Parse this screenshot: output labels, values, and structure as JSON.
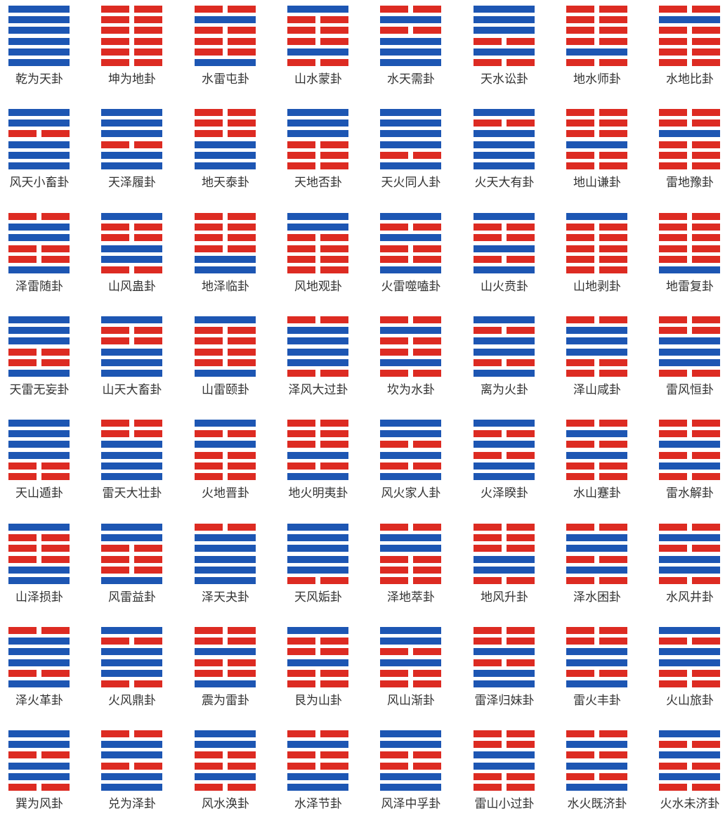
{
  "colors": {
    "yang": "#1d56b3",
    "yin": "#dd2b22"
  },
  "hexagrams": [
    {
      "name": "乾为天卦",
      "lines": [
        1,
        1,
        1,
        1,
        1,
        1
      ]
    },
    {
      "name": "坤为地卦",
      "lines": [
        0,
        0,
        0,
        0,
        0,
        0
      ]
    },
    {
      "name": "水雷屯卦",
      "lines": [
        0,
        1,
        0,
        0,
        0,
        1
      ]
    },
    {
      "name": "山水蒙卦",
      "lines": [
        1,
        0,
        0,
        0,
        1,
        0
      ]
    },
    {
      "name": "水天需卦",
      "lines": [
        0,
        1,
        0,
        1,
        1,
        1
      ]
    },
    {
      "name": "天水讼卦",
      "lines": [
        1,
        1,
        1,
        0,
        1,
        0
      ]
    },
    {
      "name": "地水师卦",
      "lines": [
        0,
        0,
        0,
        0,
        1,
        0
      ]
    },
    {
      "name": "水地比卦",
      "lines": [
        0,
        1,
        0,
        0,
        0,
        0
      ]
    },
    {
      "name": "风天小畜卦",
      "lines": [
        1,
        1,
        0,
        1,
        1,
        1
      ]
    },
    {
      "name": "天泽履卦",
      "lines": [
        1,
        1,
        1,
        0,
        1,
        1
      ]
    },
    {
      "name": "地天泰卦",
      "lines": [
        0,
        0,
        0,
        1,
        1,
        1
      ]
    },
    {
      "name": "天地否卦",
      "lines": [
        1,
        1,
        1,
        0,
        0,
        0
      ]
    },
    {
      "name": "天火同人卦",
      "lines": [
        1,
        1,
        1,
        1,
        0,
        1
      ]
    },
    {
      "name": "火天大有卦",
      "lines": [
        1,
        0,
        1,
        1,
        1,
        1
      ]
    },
    {
      "name": "地山谦卦",
      "lines": [
        0,
        0,
        0,
        1,
        0,
        0
      ]
    },
    {
      "name": "雷地豫卦",
      "lines": [
        0,
        0,
        1,
        0,
        0,
        0
      ]
    },
    {
      "name": "泽雷随卦",
      "lines": [
        0,
        1,
        1,
        0,
        0,
        1
      ]
    },
    {
      "name": "山风蛊卦",
      "lines": [
        1,
        0,
        0,
        1,
        1,
        0
      ]
    },
    {
      "name": "地泽临卦",
      "lines": [
        0,
        0,
        0,
        0,
        1,
        1
      ]
    },
    {
      "name": "风地观卦",
      "lines": [
        1,
        1,
        0,
        0,
        0,
        0
      ]
    },
    {
      "name": "火雷噬嗑卦",
      "lines": [
        1,
        0,
        1,
        0,
        0,
        1
      ]
    },
    {
      "name": "山火贲卦",
      "lines": [
        1,
        0,
        0,
        1,
        0,
        1
      ]
    },
    {
      "name": "山地剥卦",
      "lines": [
        1,
        0,
        0,
        0,
        0,
        0
      ]
    },
    {
      "name": "地雷复卦",
      "lines": [
        0,
        0,
        0,
        0,
        0,
        1
      ]
    },
    {
      "name": "天雷无妄卦",
      "lines": [
        1,
        1,
        1,
        0,
        0,
        1
      ]
    },
    {
      "name": "山天大畜卦",
      "lines": [
        1,
        0,
        0,
        1,
        1,
        1
      ]
    },
    {
      "name": "山雷颐卦",
      "lines": [
        1,
        0,
        0,
        0,
        0,
        1
      ]
    },
    {
      "name": "泽风大过卦",
      "lines": [
        0,
        1,
        1,
        1,
        1,
        0
      ]
    },
    {
      "name": "坎为水卦",
      "lines": [
        0,
        1,
        0,
        0,
        1,
        0
      ]
    },
    {
      "name": "离为火卦",
      "lines": [
        1,
        0,
        1,
        1,
        0,
        1
      ]
    },
    {
      "name": "泽山咸卦",
      "lines": [
        0,
        1,
        1,
        1,
        0,
        0
      ]
    },
    {
      "name": "雷风恒卦",
      "lines": [
        0,
        0,
        1,
        1,
        1,
        0
      ]
    },
    {
      "name": "天山遁卦",
      "lines": [
        1,
        1,
        1,
        1,
        0,
        0
      ]
    },
    {
      "name": "雷天大壮卦",
      "lines": [
        0,
        0,
        1,
        1,
        1,
        1
      ]
    },
    {
      "name": "火地晋卦",
      "lines": [
        1,
        0,
        1,
        0,
        0,
        0
      ]
    },
    {
      "name": "地火明夷卦",
      "lines": [
        0,
        0,
        0,
        1,
        0,
        1
      ]
    },
    {
      "name": "风火家人卦",
      "lines": [
        1,
        1,
        0,
        1,
        0,
        1
      ]
    },
    {
      "name": "火泽睽卦",
      "lines": [
        1,
        0,
        1,
        0,
        1,
        1
      ]
    },
    {
      "name": "水山蹇卦",
      "lines": [
        0,
        1,
        0,
        1,
        0,
        0
      ]
    },
    {
      "name": "雷水解卦",
      "lines": [
        0,
        0,
        1,
        0,
        1,
        0
      ]
    },
    {
      "name": "山泽损卦",
      "lines": [
        1,
        0,
        0,
        0,
        1,
        1
      ]
    },
    {
      "name": "风雷益卦",
      "lines": [
        1,
        1,
        0,
        0,
        0,
        1
      ]
    },
    {
      "name": "泽天夬卦",
      "lines": [
        0,
        1,
        1,
        1,
        1,
        1
      ]
    },
    {
      "name": "天风姤卦",
      "lines": [
        1,
        1,
        1,
        1,
        1,
        0
      ]
    },
    {
      "name": "泽地萃卦",
      "lines": [
        0,
        1,
        1,
        0,
        0,
        0
      ]
    },
    {
      "name": "地风升卦",
      "lines": [
        0,
        0,
        0,
        1,
        1,
        0
      ]
    },
    {
      "name": "泽水困卦",
      "lines": [
        0,
        1,
        1,
        0,
        1,
        0
      ]
    },
    {
      "name": "水风井卦",
      "lines": [
        0,
        1,
        0,
        1,
        1,
        0
      ]
    },
    {
      "name": "泽火革卦",
      "lines": [
        0,
        1,
        1,
        1,
        0,
        1
      ]
    },
    {
      "name": "火风鼎卦",
      "lines": [
        1,
        0,
        1,
        1,
        1,
        0
      ]
    },
    {
      "name": "震为雷卦",
      "lines": [
        0,
        0,
        1,
        0,
        0,
        1
      ]
    },
    {
      "name": "艮为山卦",
      "lines": [
        1,
        0,
        0,
        1,
        0,
        0
      ]
    },
    {
      "name": "风山渐卦",
      "lines": [
        1,
        1,
        0,
        1,
        0,
        0
      ]
    },
    {
      "name": "雷泽归妹卦",
      "lines": [
        0,
        0,
        1,
        0,
        1,
        1
      ]
    },
    {
      "name": "雷火丰卦",
      "lines": [
        0,
        0,
        1,
        1,
        0,
        1
      ]
    },
    {
      "name": "火山旅卦",
      "lines": [
        1,
        0,
        1,
        1,
        0,
        0
      ]
    },
    {
      "name": "巽为风卦",
      "lines": [
        1,
        1,
        0,
        1,
        1,
        0
      ]
    },
    {
      "name": "兑为泽卦",
      "lines": [
        0,
        1,
        1,
        0,
        1,
        1
      ]
    },
    {
      "name": "风水涣卦",
      "lines": [
        1,
        1,
        0,
        0,
        1,
        0
      ]
    },
    {
      "name": "水泽节卦",
      "lines": [
        0,
        1,
        0,
        0,
        1,
        1
      ]
    },
    {
      "name": "风泽中孚卦",
      "lines": [
        1,
        1,
        0,
        0,
        1,
        1
      ]
    },
    {
      "name": "雷山小过卦",
      "lines": [
        0,
        0,
        1,
        1,
        0,
        0
      ]
    },
    {
      "name": "水火既济卦",
      "lines": [
        0,
        1,
        0,
        1,
        0,
        1
      ]
    },
    {
      "name": "火水未济卦",
      "lines": [
        1,
        0,
        1,
        0,
        1,
        0
      ]
    }
  ]
}
